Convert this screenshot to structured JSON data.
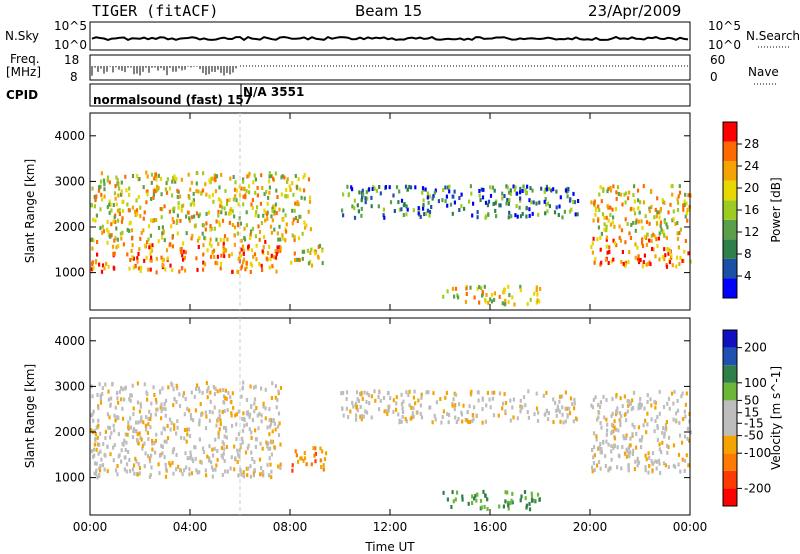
{
  "header": {
    "radar": "TIGER (fitACF)",
    "beam": "Beam 15",
    "date": "23/Apr/2009"
  },
  "panel_labels": {
    "nsky": "N.Sky",
    "nsearch": "N.Search",
    "freq": "Freq.",
    "mhz": "[MHz]",
    "nave": "Nave",
    "cpid": "CPID",
    "cpid_text": "normalsound (fast) 157",
    "cpid_text2": "N/A 3551"
  },
  "mini_ticks": {
    "nsky_top": "10^5",
    "nsky_bottom": "10^0",
    "nsearch_top": "10^5",
    "nsearch_bottom": "10^0",
    "freq_top": "18",
    "freq_bottom": "8",
    "nave_top": "60",
    "nave_bottom": "0"
  },
  "colors": {
    "power_scale": [
      "#0000ff",
      "#1c4fa8",
      "#2f7f4a",
      "#5aa04a",
      "#9ccc22",
      "#e6d800",
      "#f4a300",
      "#ff6a00",
      "#ff0000"
    ],
    "velocity_scale": [
      "#1010c0",
      "#2050b0",
      "#2f7f4a",
      "#6ab73a",
      "#bdbdbd",
      "#bdbdbd",
      "#f4a300",
      "#ff7a00",
      "#ff3a00",
      "#ff0000"
    ]
  },
  "chart_data": [
    {
      "type": "heatmap",
      "title": "Power",
      "xlabel": "",
      "ylabel": "Slant Range [km]",
      "x_ticks": [
        "00:00",
        "04:00",
        "08:00",
        "12:00",
        "16:00",
        "20:00",
        "00:00"
      ],
      "x_range_hours": [
        0,
        24
      ],
      "y_ticks": [
        1000,
        2000,
        3000,
        4000
      ],
      "ylim": [
        180,
        4500
      ],
      "colorbar": {
        "label": "Power [dB]",
        "ticks": [
          4,
          8,
          12,
          16,
          20,
          24,
          28
        ],
        "range": [
          0,
          32
        ]
      },
      "regions": [
        {
          "name": "main band",
          "t": [
            0,
            7.6
          ],
          "range": [
            1000,
            1700
          ],
          "level": "strong"
        },
        {
          "name": "upper layer",
          "t": [
            0,
            8.8
          ],
          "range": [
            1700,
            3200
          ],
          "level": "medium"
        },
        {
          "name": "blob",
          "t": [
            8.0,
            9.4
          ],
          "range": [
            1150,
            1650
          ],
          "level": "medium"
        },
        {
          "name": "patches",
          "t": [
            10.0,
            19.5
          ],
          "range": [
            2200,
            2900
          ],
          "level": "weak"
        },
        {
          "name": "near range",
          "t": [
            14.0,
            18.0
          ],
          "range": [
            300,
            700
          ],
          "level": "medium"
        },
        {
          "name": "evening band",
          "t": [
            20.0,
            24
          ],
          "range": [
            1100,
            1800
          ],
          "level": "strong"
        },
        {
          "name": "evening upper",
          "t": [
            20.0,
            24
          ],
          "range": [
            1800,
            2900
          ],
          "level": "medium"
        }
      ]
    },
    {
      "type": "heatmap",
      "title": "Velocity",
      "xlabel": "Time UT",
      "ylabel": "Slant Range [km]",
      "x_ticks": [
        "00:00",
        "04:00",
        "08:00",
        "12:00",
        "16:00",
        "20:00",
        "00:00"
      ],
      "x_range_hours": [
        0,
        24
      ],
      "y_ticks": [
        1000,
        2000,
        3000,
        4000
      ],
      "ylim": [
        180,
        4500
      ],
      "colorbar": {
        "label": "Velocity [m s^-1]",
        "ticks": [
          200,
          100,
          50,
          15,
          -15,
          -50,
          -100,
          -200
        ],
        "range": [
          -250,
          250
        ]
      },
      "regions": [
        {
          "name": "ground scatter band",
          "t": [
            0,
            7.6
          ],
          "range": [
            1000,
            3100
          ],
          "level": "near zero"
        },
        {
          "name": "negative blob",
          "t": [
            8.0,
            9.4
          ],
          "range": [
            1150,
            1650
          ],
          "level": "negative"
        },
        {
          "name": "patches",
          "t": [
            10.0,
            19.5
          ],
          "range": [
            2200,
            2900
          ],
          "level": "near zero"
        },
        {
          "name": "near range positive",
          "t": [
            14.0,
            18.0
          ],
          "range": [
            300,
            700
          ],
          "level": "positive"
        },
        {
          "name": "evening band",
          "t": [
            20.0,
            24
          ],
          "range": [
            1100,
            2900
          ],
          "level": "near zero"
        }
      ]
    }
  ]
}
